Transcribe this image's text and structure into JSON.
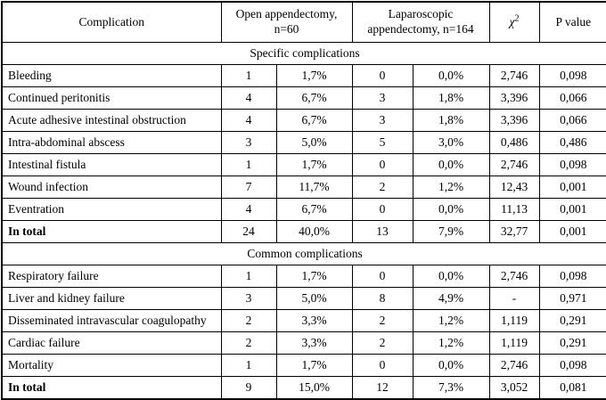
{
  "colors": {
    "border": "#000000",
    "background": "#ffffff",
    "text": "#000000"
  },
  "table": {
    "header": {
      "complication": "Complication",
      "open": "Open appendectomy, n=60",
      "laparoscopic": "Laparoscopic appendectomy, n=164",
      "chi_base": "χ",
      "chi_sup": "2",
      "p_value": "P value"
    },
    "sections": [
      {
        "title": "Specific complications",
        "rows": [
          {
            "name": "Bleeding",
            "bold": false,
            "open_n": "1",
            "open_pct": "1,7%",
            "lap_n": "0",
            "lap_pct": "0,0%",
            "chi2": "2,746",
            "p_value": "0,098"
          },
          {
            "name": "Continued peritonitis",
            "bold": false,
            "open_n": "4",
            "open_pct": "6,7%",
            "lap_n": "3",
            "lap_pct": "1,8%",
            "chi2": "3,396",
            "p_value": "0,066"
          },
          {
            "name": "Acute adhesive intestinal obstruction",
            "bold": false,
            "open_n": "4",
            "open_pct": "6,7%",
            "lap_n": "3",
            "lap_pct": "1,8%",
            "chi2": "3,396",
            "p_value": "0,066"
          },
          {
            "name": "Intra-abdominal abscess",
            "bold": false,
            "open_n": "3",
            "open_pct": "5,0%",
            "lap_n": "5",
            "lap_pct": "3,0%",
            "chi2": "0,486",
            "p_value": "0,486"
          },
          {
            "name": "Intestinal fistula",
            "bold": false,
            "open_n": "1",
            "open_pct": "1,7%",
            "lap_n": "0",
            "lap_pct": "0,0%",
            "chi2": "2,746",
            "p_value": "0,098"
          },
          {
            "name": "Wound infection",
            "bold": false,
            "open_n": "7",
            "open_pct": "11,7%",
            "lap_n": "2",
            "lap_pct": "1,2%",
            "chi2": "12,43",
            "p_value": "0,001"
          },
          {
            "name": "Eventration",
            "bold": false,
            "open_n": "4",
            "open_pct": "6,7%",
            "lap_n": "0",
            "lap_pct": "0,0%",
            "chi2": "11,13",
            "p_value": "0,001"
          },
          {
            "name": "In total",
            "bold": true,
            "open_n": "24",
            "open_pct": "40,0%",
            "lap_n": "13",
            "lap_pct": "7,9%",
            "chi2": "32,77",
            "p_value": "0,001"
          }
        ]
      },
      {
        "title": "Common complications",
        "rows": [
          {
            "name": "Respiratory failure",
            "bold": false,
            "open_n": "1",
            "open_pct": "1,7%",
            "lap_n": "0",
            "lap_pct": "0,0%",
            "chi2": "2,746",
            "p_value": "0,098"
          },
          {
            "name": "Liver and kidney failure",
            "bold": false,
            "open_n": "3",
            "open_pct": "5,0%",
            "lap_n": "8",
            "lap_pct": "4,9%",
            "chi2": "-",
            "p_value": "0,971"
          },
          {
            "name": "Disseminated intravascular coagulopathy",
            "bold": false,
            "open_n": "2",
            "open_pct": "3,3%",
            "lap_n": "2",
            "lap_pct": "1,2%",
            "chi2": "1,119",
            "p_value": "0,291"
          },
          {
            "name": "Cardiac failure",
            "bold": false,
            "open_n": "2",
            "open_pct": "3,3%",
            "lap_n": "2",
            "lap_pct": "1,2%",
            "chi2": "1,119",
            "p_value": "0,291"
          },
          {
            "name": "Mortality",
            "bold": false,
            "open_n": "1",
            "open_pct": "1,7%",
            "lap_n": "0",
            "lap_pct": "0,0%",
            "chi2": "2,746",
            "p_value": "0,098"
          },
          {
            "name": "In total",
            "bold": true,
            "open_n": "9",
            "open_pct": "15,0%",
            "lap_n": "12",
            "lap_pct": "7,3%",
            "chi2": "3,052",
            "p_value": "0,081"
          }
        ]
      }
    ]
  },
  "chart_data": {
    "type": "table",
    "title": "Complications after open vs laparoscopic appendectomy",
    "columns": [
      "Complication",
      "Open appendectomy, n=60 (n)",
      "Open appendectomy, n=60 (%)",
      "Laparoscopic appendectomy, n=164 (n)",
      "Laparoscopic appendectomy, n=164 (%)",
      "χ2",
      "P value"
    ],
    "rows": [
      [
        "Specific complications",
        "",
        "",
        "",
        "",
        "",
        ""
      ],
      [
        "Bleeding",
        "1",
        "1,7%",
        "0",
        "0,0%",
        "2,746",
        "0,098"
      ],
      [
        "Continued peritonitis",
        "4",
        "6,7%",
        "3",
        "1,8%",
        "3,396",
        "0,066"
      ],
      [
        "Acute adhesive intestinal obstruction",
        "4",
        "6,7%",
        "3",
        "1,8%",
        "3,396",
        "0,066"
      ],
      [
        "Intra-abdominal abscess",
        "3",
        "5,0%",
        "5",
        "3,0%",
        "0,486",
        "0,486"
      ],
      [
        "Intestinal fistula",
        "1",
        "1,7%",
        "0",
        "0,0%",
        "2,746",
        "0,098"
      ],
      [
        "Wound infection",
        "7",
        "11,7%",
        "2",
        "1,2%",
        "12,43",
        "0,001"
      ],
      [
        "Eventration",
        "4",
        "6,7%",
        "0",
        "0,0%",
        "11,13",
        "0,001"
      ],
      [
        "In total",
        "24",
        "40,0%",
        "13",
        "7,9%",
        "32,77",
        "0,001"
      ],
      [
        "Common complications",
        "",
        "",
        "",
        "",
        "",
        ""
      ],
      [
        "Respiratory failure",
        "1",
        "1,7%",
        "0",
        "0,0%",
        "2,746",
        "0,098"
      ],
      [
        "Liver and kidney failure",
        "3",
        "5,0%",
        "8",
        "4,9%",
        "-",
        "0,971"
      ],
      [
        "Disseminated intravascular coagulopathy",
        "2",
        "3,3%",
        "2",
        "1,2%",
        "1,119",
        "0,291"
      ],
      [
        "Cardiac failure",
        "2",
        "3,3%",
        "2",
        "1,2%",
        "1,119",
        "0,291"
      ],
      [
        "Mortality",
        "1",
        "1,7%",
        "0",
        "0,0%",
        "2,746",
        "0,098"
      ],
      [
        "In total",
        "9",
        "15,0%",
        "12",
        "7,3%",
        "3,052",
        "0,081"
      ]
    ]
  }
}
